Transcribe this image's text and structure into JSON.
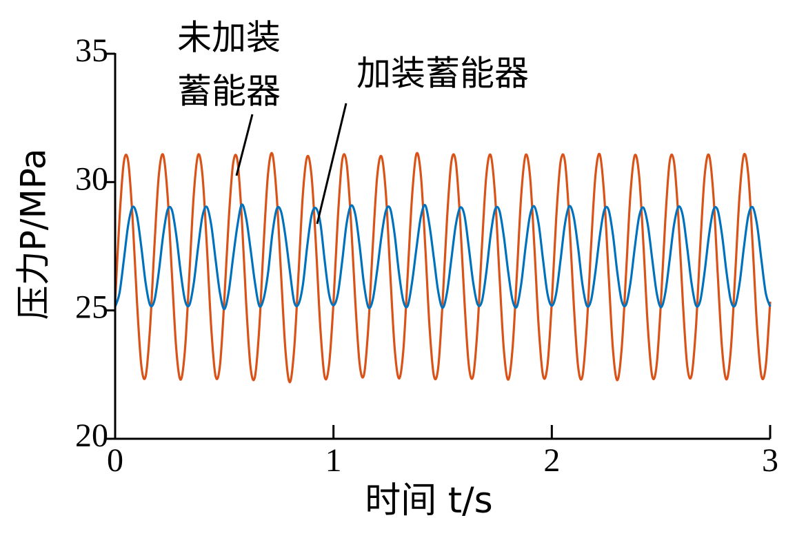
{
  "chart_data": {
    "type": "line",
    "xlabel": "时间 t/s",
    "ylabel": "压力P/MPa",
    "xlim": [
      0,
      3
    ],
    "ylim": [
      20,
      35
    ],
    "xticks": [
      0,
      1,
      2,
      3
    ],
    "yticks": [
      20,
      25,
      30,
      35
    ],
    "annotations": [
      {
        "text": [
          "未加装",
          "蓄能器"
        ]
      },
      {
        "text": "加装蓄能器"
      }
    ],
    "x": [
      0,
      0.02,
      0.04,
      0.06,
      0.08,
      0.1,
      0.12,
      0.14,
      0.16,
      0.18,
      0.2,
      0.22,
      0.24,
      0.26,
      0.28,
      0.3,
      0.32,
      0.34,
      0.36,
      0.38,
      0.4,
      0.42,
      0.44,
      0.46,
      0.48,
      0.5,
      0.52,
      0.54,
      0.56,
      0.58,
      0.6,
      0.62,
      0.64,
      0.66,
      0.68,
      0.7,
      0.72,
      0.74,
      0.76,
      0.78,
      0.8,
      0.82,
      0.84,
      0.86,
      0.88,
      0.9,
      0.92,
      0.94,
      0.96,
      0.98,
      1,
      1.02,
      1.04,
      1.06,
      1.08,
      1.1,
      1.12,
      1.14,
      1.16,
      1.18,
      1.2,
      1.22,
      1.24,
      1.26,
      1.28,
      1.3,
      1.32,
      1.34,
      1.36,
      1.38,
      1.4,
      1.42,
      1.44,
      1.46,
      1.48,
      1.5,
      1.52,
      1.54,
      1.56,
      1.58,
      1.6,
      1.62,
      1.64,
      1.66,
      1.68,
      1.7,
      1.72,
      1.74,
      1.76,
      1.78,
      1.8,
      1.82,
      1.84,
      1.86,
      1.88,
      1.9,
      1.92,
      1.94,
      1.96,
      1.98,
      2,
      2.02,
      2.04,
      2.06,
      2.08,
      2.1,
      2.12,
      2.14,
      2.16,
      2.18,
      2.2,
      2.22,
      2.24,
      2.26,
      2.28,
      2.3,
      2.32,
      2.34,
      2.36,
      2.38,
      2.4,
      2.42,
      2.44,
      2.46,
      2.48,
      2.5,
      2.52,
      2.54,
      2.56,
      2.58,
      2.6,
      2.62,
      2.64,
      2.66,
      2.68,
      2.7,
      2.72,
      2.74,
      2.76,
      2.78,
      2.8,
      2.82,
      2.84,
      2.86,
      2.88,
      2.9,
      2.92,
      2.94,
      2.96,
      2.98,
      3
    ],
    "series": [
      {
        "color": "#d95319",
        "values": [
          25.34,
          28.57,
          30.79,
          30.79,
          28.57,
          25.34,
          22.85,
          22.44,
          24.34,
          27.52,
          30.26,
          31.06,
          29.5,
          26.42,
          23.49,
          22.3,
          23.49,
          26.42,
          29.5,
          31.06,
          30.26,
          27.52,
          24.34,
          22.44,
          22.85,
          25.4,
          28.5,
          30.7,
          30.85,
          28.6,
          25.3,
          22.8,
          22.4,
          24.3,
          27.55,
          30.3,
          31.1,
          29.45,
          26.4,
          23.45,
          22.2,
          23.5,
          26.45,
          29.55,
          31.0,
          30.2,
          27.5,
          24.3,
          22.4,
          22.9,
          25.3,
          28.6,
          30.85,
          30.75,
          28.5,
          25.35,
          22.9,
          22.5,
          24.4,
          27.5,
          30.2,
          31.0,
          29.55,
          26.45,
          23.55,
          22.35,
          23.45,
          26.4,
          29.45,
          31.1,
          30.3,
          27.55,
          24.35,
          22.45,
          22.8,
          25.35,
          28.55,
          30.8,
          30.8,
          28.55,
          25.35,
          22.85,
          22.45,
          24.35,
          27.5,
          30.25,
          31.05,
          29.5,
          26.4,
          23.5,
          22.3,
          23.5,
          26.4,
          29.5,
          31.05,
          30.25,
          27.5,
          24.35,
          22.45,
          22.85,
          25.32,
          28.58,
          30.78,
          30.82,
          28.56,
          25.33,
          22.84,
          22.42,
          24.36,
          27.53,
          30.27,
          31.07,
          29.48,
          26.43,
          23.48,
          22.28,
          23.52,
          26.43,
          29.52,
          31.04,
          30.24,
          27.51,
          24.33,
          22.43,
          22.86,
          25.36,
          28.54,
          30.81,
          30.77,
          28.58,
          25.36,
          22.86,
          22.46,
          24.32,
          27.51,
          30.25,
          31.05,
          29.51,
          26.41,
          23.5,
          22.31,
          23.48,
          26.41,
          29.49,
          31.07,
          30.27,
          27.53,
          24.35,
          22.44,
          22.84,
          25.34
        ]
      },
      {
        "color": "#0072bd",
        "values": [
          25.15,
          25.68,
          26.98,
          28.34,
          29.03,
          28.68,
          27.46,
          26.05,
          25.21,
          25.39,
          26.5,
          27.93,
          28.91,
          28.91,
          27.93,
          26.5,
          25.39,
          25.21,
          26.05,
          27.46,
          28.68,
          29.03,
          28.34,
          26.98,
          25.68,
          25.05,
          25.72,
          27.05,
          28.3,
          29.12,
          28.6,
          27.4,
          26.1,
          25.18,
          25.45,
          26.44,
          27.98,
          28.95,
          28.85,
          27.88,
          26.55,
          25.33,
          25.25,
          26.0,
          27.52,
          28.72,
          28.98,
          28.4,
          26.92,
          25.62,
          25.2,
          25.64,
          26.92,
          28.38,
          29.08,
          28.74,
          27.5,
          26.0,
          25.12,
          25.42,
          26.55,
          27.9,
          28.88,
          28.96,
          27.97,
          26.46,
          25.36,
          25.18,
          26.1,
          27.42,
          28.64,
          29.1,
          28.3,
          27.02,
          25.72,
          25.1,
          25.7,
          27.0,
          28.32,
          29.0,
          28.7,
          27.44,
          26.08,
          25.24,
          25.36,
          26.48,
          27.95,
          28.93,
          28.89,
          27.9,
          26.52,
          25.4,
          25.15,
          26.04,
          27.48,
          28.7,
          29.05,
          28.36,
          26.96,
          25.66,
          25.18,
          25.66,
          26.96,
          28.36,
          29.06,
          28.66,
          27.48,
          26.03,
          25.19,
          25.4,
          26.52,
          27.91,
          28.9,
          28.92,
          27.95,
          26.48,
          25.37,
          25.22,
          26.06,
          27.45,
          28.66,
          29.0,
          28.32,
          26.99,
          25.7,
          25.12,
          25.69,
          26.99,
          28.35,
          29.04,
          28.69,
          27.45,
          26.06,
          25.2,
          25.38,
          26.51,
          27.93,
          28.91,
          28.9,
          27.92,
          26.5,
          25.38,
          25.2,
          26.05,
          27.47,
          28.69,
          29.02,
          28.34,
          26.97,
          25.67,
          25.15
        ]
      }
    ]
  }
}
